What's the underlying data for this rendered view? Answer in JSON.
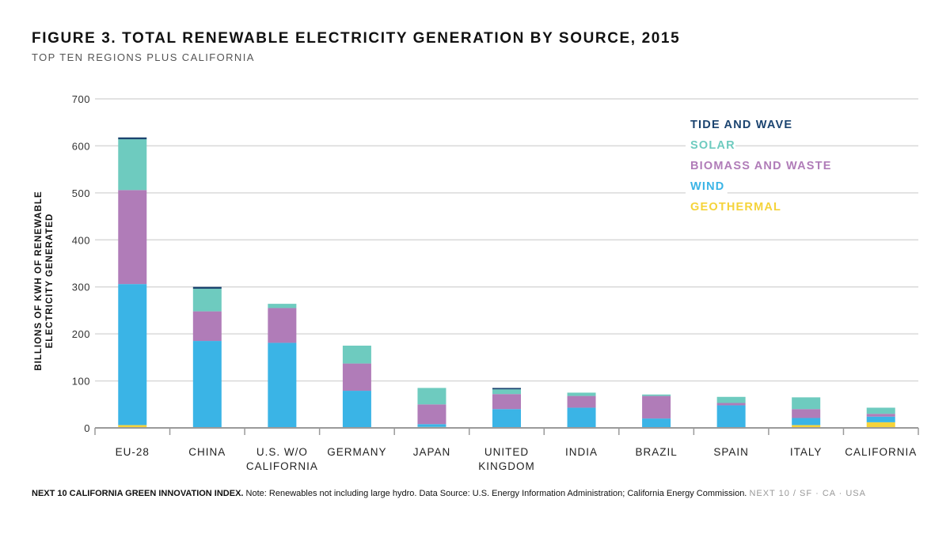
{
  "header": {
    "title": "FIGURE 3. TOTAL RENEWABLE ELECTRICITY GENERATION BY SOURCE, 2015",
    "subtitle": "TOP TEN REGIONS PLUS CALIFORNIA"
  },
  "footer": {
    "brand": "NEXT 10 CALIFORNIA GREEN INNOVATION INDEX.",
    "note": " Note: Renewables not including large hydro. Data Source: U.S. Energy Information Administration; California Energy Commission.",
    "tag": "NEXT 10  /  SF · CA · USA"
  },
  "chart_data": {
    "type": "bar",
    "stacked": true,
    "title": "FIGURE 3. TOTAL RENEWABLE ELECTRICITY GENERATION BY SOURCE, 2015",
    "subtitle": "TOP TEN REGIONS PLUS CALIFORNIA",
    "ylabel_lines": [
      "BILLIONS OF KWH OF RENEWABLE",
      "ELECTRICITY GENERATED"
    ],
    "xlabel": "",
    "ylim": [
      0,
      700
    ],
    "yticks": [
      0,
      100,
      200,
      300,
      400,
      500,
      600,
      700
    ],
    "grid": true,
    "legend_position": "top-right",
    "categories": [
      [
        "EU-28"
      ],
      [
        "CHINA"
      ],
      [
        "U.S. W/O",
        "CALIFORNIA"
      ],
      [
        "GERMANY"
      ],
      [
        "JAPAN"
      ],
      [
        "UNITED",
        "KINGDOM"
      ],
      [
        "INDIA"
      ],
      [
        "BRAZIL"
      ],
      [
        "SPAIN"
      ],
      [
        "ITALY"
      ],
      [
        "CALIFORNIA"
      ]
    ],
    "series": [
      {
        "name": "GEOTHERMAL",
        "color": "#f5d33a",
        "values": [
          6,
          0,
          0,
          0,
          2,
          0,
          0,
          0,
          0,
          6,
          12
        ]
      },
      {
        "name": "WIND",
        "color": "#3ab4e6",
        "values": [
          300,
          185,
          181,
          79,
          6,
          40,
          43,
          20,
          48,
          15,
          12
        ]
      },
      {
        "name": "BIOMASS AND WASTE",
        "color": "#b07cb8",
        "values": [
          200,
          63,
          74,
          58,
          42,
          32,
          25,
          48,
          5,
          19,
          6
        ]
      },
      {
        "name": "SOLAR",
        "color": "#6ecbbf",
        "values": [
          108,
          48,
          9,
          38,
          35,
          10,
          7,
          3,
          13,
          25,
          13
        ]
      },
      {
        "name": "TIDE AND WAVE",
        "color": "#1b4470",
        "values": [
          4,
          4,
          0,
          0,
          0,
          3,
          0,
          0,
          0,
          0,
          0
        ]
      }
    ],
    "legend_order": [
      "TIDE AND WAVE",
      "SOLAR",
      "BIOMASS AND WASTE",
      "WIND",
      "GEOTHERMAL"
    ]
  }
}
